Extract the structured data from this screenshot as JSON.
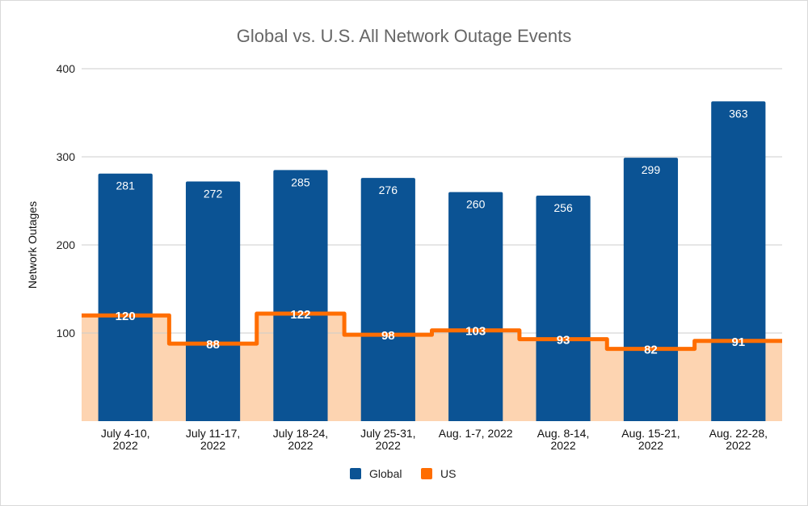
{
  "chart_data": {
    "type": "bar",
    "title": "Global vs. U.S. All Network Outage Events",
    "xlabel": "",
    "ylabel": "Network Outages",
    "ylim": [
      0,
      400
    ],
    "yticks": [
      100,
      200,
      300,
      400
    ],
    "grid": true,
    "legend_position": "bottom",
    "categories": [
      [
        "July 4-10,",
        "2022"
      ],
      [
        "July 11-17,",
        "2022"
      ],
      [
        "July 18-24,",
        "2022"
      ],
      [
        "July 25-31,",
        "2022"
      ],
      [
        "Aug. 1-7, 2022"
      ],
      [
        "Aug. 8-14,",
        "2022"
      ],
      [
        "Aug. 15-21,",
        "2022"
      ],
      [
        "Aug. 22-28,",
        "2022"
      ]
    ],
    "series": [
      {
        "name": "Global",
        "type": "bar",
        "color": "#0B5394",
        "values": [
          281,
          272,
          285,
          276,
          260,
          256,
          299,
          363
        ]
      },
      {
        "name": "US",
        "type": "stepped-area",
        "color": "#FF6D01",
        "fill": "#FDD4B1",
        "values": [
          120,
          88,
          122,
          98,
          103,
          93,
          82,
          91
        ]
      }
    ]
  }
}
